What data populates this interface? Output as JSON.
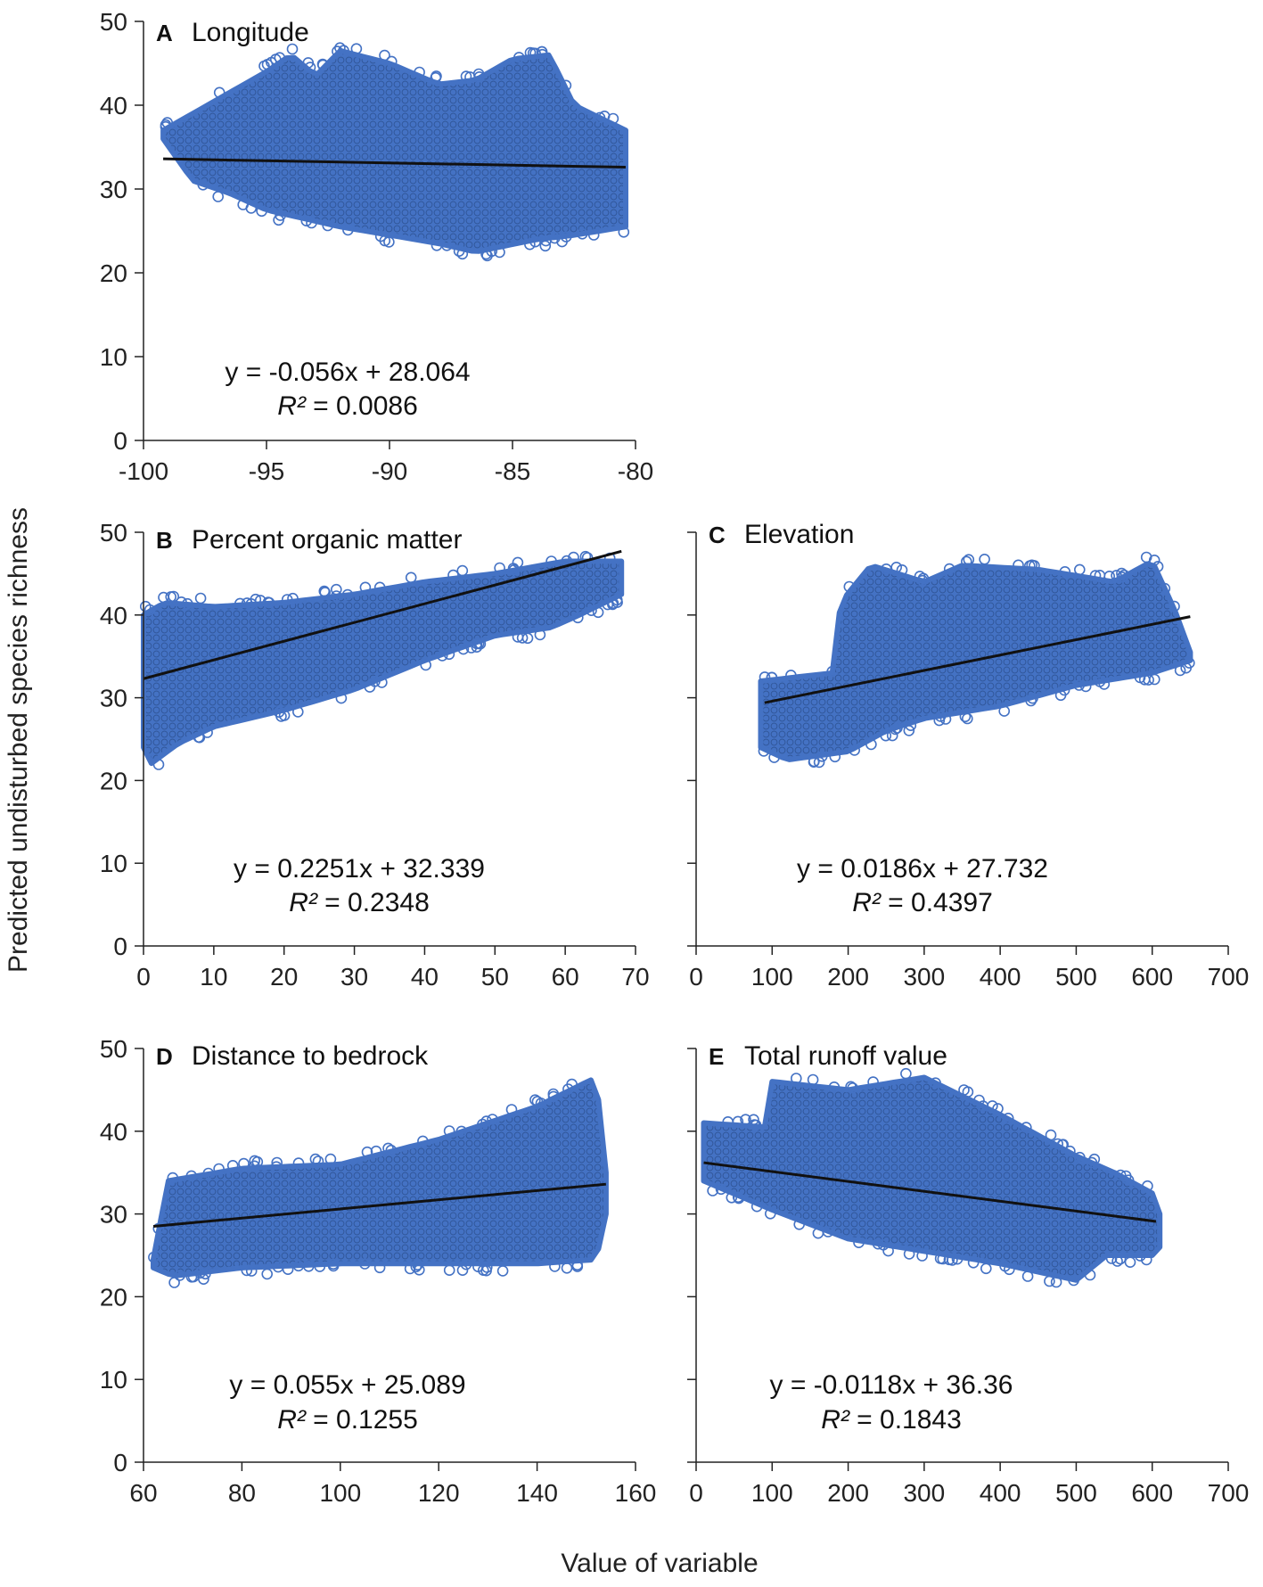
{
  "figure": {
    "ylabel": "Predicted undisturbed species richness",
    "xlabel": "Value of variable"
  },
  "colors": {
    "points": "#4472C4",
    "trend": "#111111",
    "axis": "#222222"
  },
  "chart_data": [
    {
      "type": "scatter",
      "letter": "A",
      "title": "Longitude",
      "xlim": [
        -100,
        -80
      ],
      "xticks": [
        -100,
        -95,
        -90,
        -85,
        -80
      ],
      "ylim": [
        0,
        50
      ],
      "yticks": [
        0,
        10,
        20,
        30,
        40,
        50
      ],
      "y_tick_labels": true,
      "trendline": {
        "x": [
          -99.2,
          -80.4
        ],
        "y": [
          33.6,
          32.6
        ]
      },
      "equation": "y = -0.056x + 28.064",
      "r2_symbol": "R²",
      "r2_value": " = 0.0086",
      "cloud": {
        "x_range": [
          -99.2,
          -80.4
        ],
        "lower": [
          [
            -99.2,
            36.0
          ],
          [
            -98.0,
            31.0
          ],
          [
            -96.5,
            29.5
          ],
          [
            -95.0,
            27.5
          ],
          [
            -93.5,
            26.5
          ],
          [
            -92.0,
            25.5
          ],
          [
            -90.0,
            24.5
          ],
          [
            -88.0,
            23.5
          ],
          [
            -86.5,
            22.5
          ],
          [
            -84.0,
            24.0
          ],
          [
            -82.5,
            24.5
          ],
          [
            -80.4,
            25.5
          ]
        ],
        "upper": [
          [
            -99.2,
            37.0
          ],
          [
            -98.0,
            39.0
          ],
          [
            -96.5,
            41.5
          ],
          [
            -95.0,
            44.0
          ],
          [
            -94.0,
            46.0
          ],
          [
            -93.0,
            43.5
          ],
          [
            -92.0,
            46.5
          ],
          [
            -90.0,
            45.0
          ],
          [
            -88.0,
            42.5
          ],
          [
            -86.5,
            43.0
          ],
          [
            -85.0,
            45.5
          ],
          [
            -83.5,
            46.0
          ],
          [
            -82.5,
            40.0
          ],
          [
            -80.4,
            37.0
          ]
        ]
      }
    },
    {
      "type": "scatter",
      "letter": "B",
      "title": "Percent organic matter",
      "xlim": [
        0,
        70
      ],
      "xticks": [
        0,
        10,
        20,
        30,
        40,
        50,
        60,
        70
      ],
      "ylim": [
        0,
        50
      ],
      "yticks": [
        0,
        10,
        20,
        30,
        40,
        50
      ],
      "y_tick_labels": true,
      "trendline": {
        "x": [
          0,
          68
        ],
        "y": [
          32.3,
          47.7
        ]
      },
      "equation": "y = 0.2251x + 32.339",
      "r2_symbol": "R²",
      "r2_value": " = 0.2348",
      "cloud": {
        "x_range": [
          0,
          68
        ],
        "lower": [
          [
            0,
            24.0
          ],
          [
            1,
            22.0
          ],
          [
            5,
            24.5
          ],
          [
            10,
            26.5
          ],
          [
            20,
            28.5
          ],
          [
            30,
            31.0
          ],
          [
            40,
            34.5
          ],
          [
            50,
            37.5
          ],
          [
            58,
            38.5
          ],
          [
            62,
            40.0
          ],
          [
            68,
            42.5
          ]
        ],
        "upper": [
          [
            0,
            40.0
          ],
          [
            3,
            41.5
          ],
          [
            10,
            41.0
          ],
          [
            20,
            41.5
          ],
          [
            30,
            42.5
          ],
          [
            40,
            44.0
          ],
          [
            50,
            45.0
          ],
          [
            60,
            46.5
          ],
          [
            68,
            46.5
          ]
        ]
      }
    },
    {
      "type": "scatter",
      "letter": "C",
      "title": "Elevation",
      "xlim": [
        0,
        700
      ],
      "xticks": [
        0,
        100,
        200,
        300,
        400,
        500,
        600,
        700
      ],
      "ylim": [
        0,
        50
      ],
      "yticks": [
        0,
        10,
        20,
        30,
        40,
        50
      ],
      "y_tick_labels": false,
      "trendline": {
        "x": [
          90,
          650
        ],
        "y": [
          29.4,
          39.8
        ]
      },
      "equation": "y = 0.0186x + 27.732",
      "r2_symbol": "R²",
      "r2_value": " = 0.4397",
      "cloud": {
        "x_range": [
          85,
          650
        ],
        "lower": [
          [
            85,
            24.0
          ],
          [
            120,
            22.5
          ],
          [
            200,
            23.5
          ],
          [
            250,
            26.0
          ],
          [
            300,
            27.5
          ],
          [
            400,
            29.0
          ],
          [
            500,
            31.5
          ],
          [
            600,
            33.0
          ],
          [
            650,
            34.5
          ]
        ],
        "upper": [
          [
            85,
            32.0
          ],
          [
            180,
            33.0
          ],
          [
            190,
            41.5
          ],
          [
            230,
            46.0
          ],
          [
            300,
            44.0
          ],
          [
            350,
            46.0
          ],
          [
            450,
            45.5
          ],
          [
            550,
            44.0
          ],
          [
            600,
            46.5
          ],
          [
            630,
            40.5
          ],
          [
            650,
            35.5
          ]
        ]
      }
    },
    {
      "type": "scatter",
      "letter": "D",
      "title": "Distance to bedrock",
      "xlim": [
        60,
        160
      ],
      "xticks": [
        60,
        80,
        100,
        120,
        140,
        160
      ],
      "ylim": [
        0,
        50
      ],
      "yticks": [
        0,
        10,
        20,
        30,
        40,
        50
      ],
      "y_tick_labels": true,
      "trendline": {
        "x": [
          62,
          154
        ],
        "y": [
          28.5,
          33.6
        ]
      },
      "equation": "y = 0.055x + 25.089",
      "r2_symbol": "R²",
      "r2_value": " = 0.1255",
      "cloud": {
        "x_range": [
          62,
          154
        ],
        "lower": [
          [
            62,
            23.5
          ],
          [
            66,
            22.5
          ],
          [
            80,
            23.5
          ],
          [
            100,
            24.0
          ],
          [
            120,
            24.0
          ],
          [
            140,
            24.0
          ],
          [
            152,
            24.5
          ],
          [
            154,
            30.0
          ]
        ],
        "upper": [
          [
            62,
            24.5
          ],
          [
            65,
            34.0
          ],
          [
            80,
            35.5
          ],
          [
            100,
            36.0
          ],
          [
            120,
            39.0
          ],
          [
            140,
            43.0
          ],
          [
            152,
            46.5
          ],
          [
            154,
            35.0
          ]
        ]
      }
    },
    {
      "type": "scatter",
      "letter": "E",
      "title": "Total runoff value",
      "xlim": [
        0,
        700
      ],
      "xticks": [
        0,
        100,
        200,
        300,
        400,
        500,
        600,
        700
      ],
      "ylim": [
        0,
        50
      ],
      "yticks": [
        0,
        10,
        20,
        30,
        40,
        50
      ],
      "y_tick_labels": false,
      "trendline": {
        "x": [
          10,
          605
        ],
        "y": [
          36.2,
          29.1
        ]
      },
      "equation": "y = -0.0118x + 36.36",
      "r2_symbol": "R²",
      "r2_value": " = 0.1843",
      "cloud": {
        "x_range": [
          10,
          610
        ],
        "lower": [
          [
            10,
            34.0
          ],
          [
            100,
            30.5
          ],
          [
            200,
            27.0
          ],
          [
            300,
            25.5
          ],
          [
            400,
            24.0
          ],
          [
            500,
            22.0
          ],
          [
            540,
            25.0
          ],
          [
            600,
            25.0
          ],
          [
            610,
            26.0
          ]
        ],
        "upper": [
          [
            10,
            41.0
          ],
          [
            90,
            40.5
          ],
          [
            100,
            46.0
          ],
          [
            200,
            45.0
          ],
          [
            300,
            46.5
          ],
          [
            400,
            42.0
          ],
          [
            500,
            37.0
          ],
          [
            550,
            35.0
          ],
          [
            600,
            32.5
          ],
          [
            610,
            30.0
          ]
        ]
      }
    }
  ]
}
